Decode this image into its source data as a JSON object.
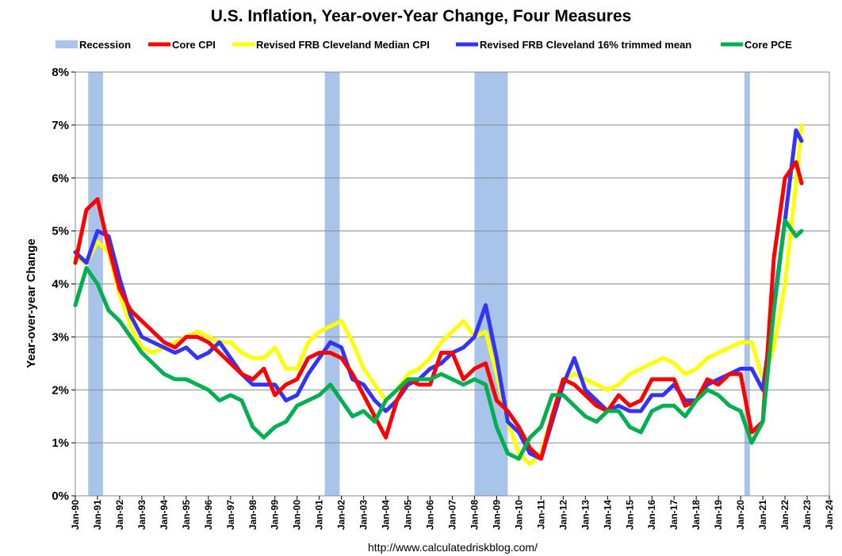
{
  "chart_data": {
    "type": "line",
    "title": "U.S. Inflation, Year-over-Year Change, Four Measures",
    "ylabel": "Year-over-year Change",
    "source": "http://www.calculatedriskblog.com/",
    "ylim": [
      0,
      8
    ],
    "xlim": [
      1990.0,
      2024.0
    ],
    "yticks": [
      "0%",
      "1%",
      "2%",
      "3%",
      "4%",
      "5%",
      "6%",
      "7%",
      "8%"
    ],
    "xticks": [
      "Jan-90",
      "Jan-91",
      "Jan-92",
      "Jan-93",
      "Jan-94",
      "Jan-95",
      "Jan-96",
      "Jan-97",
      "Jan-98",
      "Jan-99",
      "Jan-00",
      "Jan-01",
      "Jan-02",
      "Jan-03",
      "Jan-04",
      "Jan-05",
      "Jan-06",
      "Jan-07",
      "Jan-08",
      "Jan-09",
      "Jan-10",
      "Jan-11",
      "Jan-12",
      "Jan-13",
      "Jan-14",
      "Jan-15",
      "Jan-16",
      "Jan-17",
      "Jan-18",
      "Jan-19",
      "Jan-20",
      "Jan-21",
      "Jan-22",
      "Jan-23",
      "Jan-24"
    ],
    "grid": true,
    "legend_position": "top",
    "legend": [
      {
        "label": "Recession",
        "color": "#a9c4eb",
        "kind": "box"
      },
      {
        "label": "Core CPI",
        "color": "#ff0000",
        "kind": "line"
      },
      {
        "label": "Revised FRB Cleveland Median CPI",
        "color": "#ffff00",
        "kind": "line"
      },
      {
        "label": "Revised FRB Cleveland 16% trimmed mean",
        "color": "#3333ff",
        "kind": "line"
      },
      {
        "label": "Core PCE",
        "color": "#00b050",
        "kind": "line"
      }
    ],
    "recessions": [
      [
        1990.58,
        1991.25
      ],
      [
        2001.25,
        2001.92
      ],
      [
        2008.0,
        2009.5
      ],
      [
        2020.17,
        2020.42
      ]
    ],
    "series": [
      {
        "name": "Revised FRB Cleveland Median CPI",
        "color": "#ffff00",
        "x": [
          1990.0,
          1990.5,
          1991.0,
          1991.5,
          1992.0,
          1992.5,
          1993.0,
          1993.5,
          1994.0,
          1994.5,
          1995.0,
          1995.5,
          1996.0,
          1996.5,
          1997.0,
          1997.5,
          1998.0,
          1998.5,
          1999.0,
          1999.5,
          2000.0,
          2000.5,
          2001.0,
          2001.5,
          2002.0,
          2002.5,
          2003.0,
          2003.5,
          2004.0,
          2004.5,
          2005.0,
          2005.5,
          2006.0,
          2006.5,
          2007.0,
          2007.5,
          2008.0,
          2008.5,
          2009.0,
          2009.5,
          2010.0,
          2010.5,
          2011.0,
          2011.5,
          2012.0,
          2012.5,
          2013.0,
          2013.5,
          2014.0,
          2014.5,
          2015.0,
          2015.5,
          2016.0,
          2016.5,
          2017.0,
          2017.5,
          2018.0,
          2018.5,
          2019.0,
          2019.5,
          2020.0,
          2020.5,
          2021.0,
          2021.5,
          2022.0,
          2022.5,
          2022.75
        ],
        "y": [
          4.5,
          4.4,
          4.8,
          4.6,
          3.8,
          3.2,
          2.8,
          2.7,
          2.8,
          2.9,
          3.0,
          3.1,
          3.0,
          2.9,
          2.9,
          2.7,
          2.6,
          2.6,
          2.8,
          2.4,
          2.4,
          2.9,
          3.1,
          3.2,
          3.3,
          2.9,
          2.4,
          2.1,
          1.8,
          2.0,
          2.3,
          2.4,
          2.6,
          2.9,
          3.1,
          3.3,
          3.0,
          3.1,
          2.3,
          1.4,
          0.8,
          0.6,
          0.8,
          1.5,
          2.2,
          2.3,
          2.2,
          2.1,
          2.0,
          2.1,
          2.3,
          2.4,
          2.5,
          2.6,
          2.5,
          2.3,
          2.4,
          2.6,
          2.7,
          2.8,
          2.9,
          2.9,
          2.2,
          2.8,
          4.0,
          5.9,
          7.0
        ]
      },
      {
        "name": "Revised FRB Cleveland 16% trimmed mean",
        "color": "#3333ff",
        "x": [
          1990.0,
          1990.5,
          1991.0,
          1991.5,
          1992.0,
          1992.5,
          1993.0,
          1993.5,
          1994.0,
          1994.5,
          1995.0,
          1995.5,
          1996.0,
          1996.5,
          1997.0,
          1997.5,
          1998.0,
          1998.5,
          1999.0,
          1999.5,
          2000.0,
          2000.5,
          2001.0,
          2001.5,
          2002.0,
          2002.5,
          2003.0,
          2003.5,
          2004.0,
          2004.5,
          2005.0,
          2005.5,
          2006.0,
          2006.5,
          2007.0,
          2007.5,
          2008.0,
          2008.5,
          2009.0,
          2009.5,
          2010.0,
          2010.5,
          2011.0,
          2011.5,
          2012.0,
          2012.5,
          2013.0,
          2013.5,
          2014.0,
          2014.5,
          2015.0,
          2015.5,
          2016.0,
          2016.5,
          2017.0,
          2017.5,
          2018.0,
          2018.5,
          2019.0,
          2019.5,
          2020.0,
          2020.5,
          2021.0,
          2021.5,
          2022.0,
          2022.5,
          2022.75
        ],
        "y": [
          4.6,
          4.4,
          5.0,
          4.9,
          4.1,
          3.4,
          3.0,
          2.9,
          2.8,
          2.7,
          2.8,
          2.6,
          2.7,
          2.9,
          2.6,
          2.3,
          2.1,
          2.1,
          2.1,
          1.8,
          1.9,
          2.3,
          2.6,
          2.9,
          2.8,
          2.2,
          2.1,
          1.8,
          1.6,
          1.8,
          2.1,
          2.2,
          2.4,
          2.5,
          2.7,
          2.8,
          3.0,
          3.6,
          2.6,
          1.4,
          1.2,
          0.8,
          0.7,
          1.4,
          2.1,
          2.6,
          2.0,
          1.8,
          1.6,
          1.7,
          1.6,
          1.6,
          1.9,
          1.9,
          2.1,
          1.8,
          1.8,
          2.1,
          2.2,
          2.3,
          2.4,
          2.4,
          2.0,
          3.6,
          5.2,
          6.9,
          6.7
        ]
      },
      {
        "name": "Core CPI",
        "color": "#ff0000",
        "x": [
          1990.0,
          1990.5,
          1991.0,
          1991.5,
          1992.0,
          1992.5,
          1993.0,
          1993.5,
          1994.0,
          1994.5,
          1995.0,
          1995.5,
          1996.0,
          1996.5,
          1997.0,
          1997.5,
          1998.0,
          1998.5,
          1999.0,
          1999.5,
          2000.0,
          2000.5,
          2001.0,
          2001.5,
          2002.0,
          2002.5,
          2003.0,
          2003.5,
          2004.0,
          2004.5,
          2005.0,
          2005.5,
          2006.0,
          2006.5,
          2007.0,
          2007.5,
          2008.0,
          2008.5,
          2009.0,
          2009.5,
          2010.0,
          2010.5,
          2011.0,
          2011.5,
          2012.0,
          2012.5,
          2013.0,
          2013.5,
          2014.0,
          2014.5,
          2015.0,
          2015.5,
          2016.0,
          2016.5,
          2017.0,
          2017.5,
          2018.0,
          2018.5,
          2019.0,
          2019.5,
          2020.0,
          2020.5,
          2021.0,
          2021.5,
          2022.0,
          2022.5,
          2022.75
        ],
        "y": [
          4.4,
          5.4,
          5.6,
          4.7,
          3.9,
          3.5,
          3.3,
          3.1,
          2.9,
          2.8,
          3.0,
          3.0,
          2.9,
          2.7,
          2.5,
          2.3,
          2.2,
          2.4,
          1.9,
          2.1,
          2.2,
          2.6,
          2.7,
          2.7,
          2.6,
          2.3,
          1.9,
          1.5,
          1.1,
          1.8,
          2.2,
          2.1,
          2.1,
          2.7,
          2.7,
          2.2,
          2.4,
          2.5,
          1.8,
          1.6,
          1.3,
          0.9,
          0.7,
          1.5,
          2.2,
          2.1,
          1.9,
          1.7,
          1.6,
          1.9,
          1.7,
          1.8,
          2.2,
          2.2,
          2.2,
          1.7,
          1.8,
          2.2,
          2.1,
          2.3,
          2.3,
          1.2,
          1.4,
          4.5,
          6.0,
          6.3,
          5.9
        ]
      },
      {
        "name": "Core PCE",
        "color": "#00b050",
        "x": [
          1990.0,
          1990.5,
          1991.0,
          1991.5,
          1992.0,
          1992.5,
          1993.0,
          1993.5,
          1994.0,
          1994.5,
          1995.0,
          1995.5,
          1996.0,
          1996.5,
          1997.0,
          1997.5,
          1998.0,
          1998.5,
          1999.0,
          1999.5,
          2000.0,
          2000.5,
          2001.0,
          2001.5,
          2002.0,
          2002.5,
          2003.0,
          2003.5,
          2004.0,
          2004.5,
          2005.0,
          2005.5,
          2006.0,
          2006.5,
          2007.0,
          2007.5,
          2008.0,
          2008.5,
          2009.0,
          2009.5,
          2010.0,
          2010.5,
          2011.0,
          2011.5,
          2012.0,
          2012.5,
          2013.0,
          2013.5,
          2014.0,
          2014.5,
          2015.0,
          2015.5,
          2016.0,
          2016.5,
          2017.0,
          2017.5,
          2018.0,
          2018.5,
          2019.0,
          2019.5,
          2020.0,
          2020.5,
          2021.0,
          2021.5,
          2022.0,
          2022.5,
          2022.75
        ],
        "y": [
          3.6,
          4.3,
          4.0,
          3.5,
          3.3,
          3.0,
          2.7,
          2.5,
          2.3,
          2.2,
          2.2,
          2.1,
          2.0,
          1.8,
          1.9,
          1.8,
          1.3,
          1.1,
          1.3,
          1.4,
          1.7,
          1.8,
          1.9,
          2.1,
          1.8,
          1.5,
          1.6,
          1.4,
          1.8,
          2.0,
          2.2,
          2.2,
          2.2,
          2.3,
          2.2,
          2.1,
          2.2,
          2.1,
          1.3,
          0.8,
          0.7,
          1.1,
          1.3,
          1.9,
          1.9,
          1.7,
          1.5,
          1.4,
          1.6,
          1.6,
          1.3,
          1.2,
          1.6,
          1.7,
          1.7,
          1.5,
          1.8,
          2.0,
          1.9,
          1.7,
          1.6,
          1.0,
          1.4,
          3.5,
          5.2,
          4.9,
          5.0
        ]
      }
    ]
  }
}
